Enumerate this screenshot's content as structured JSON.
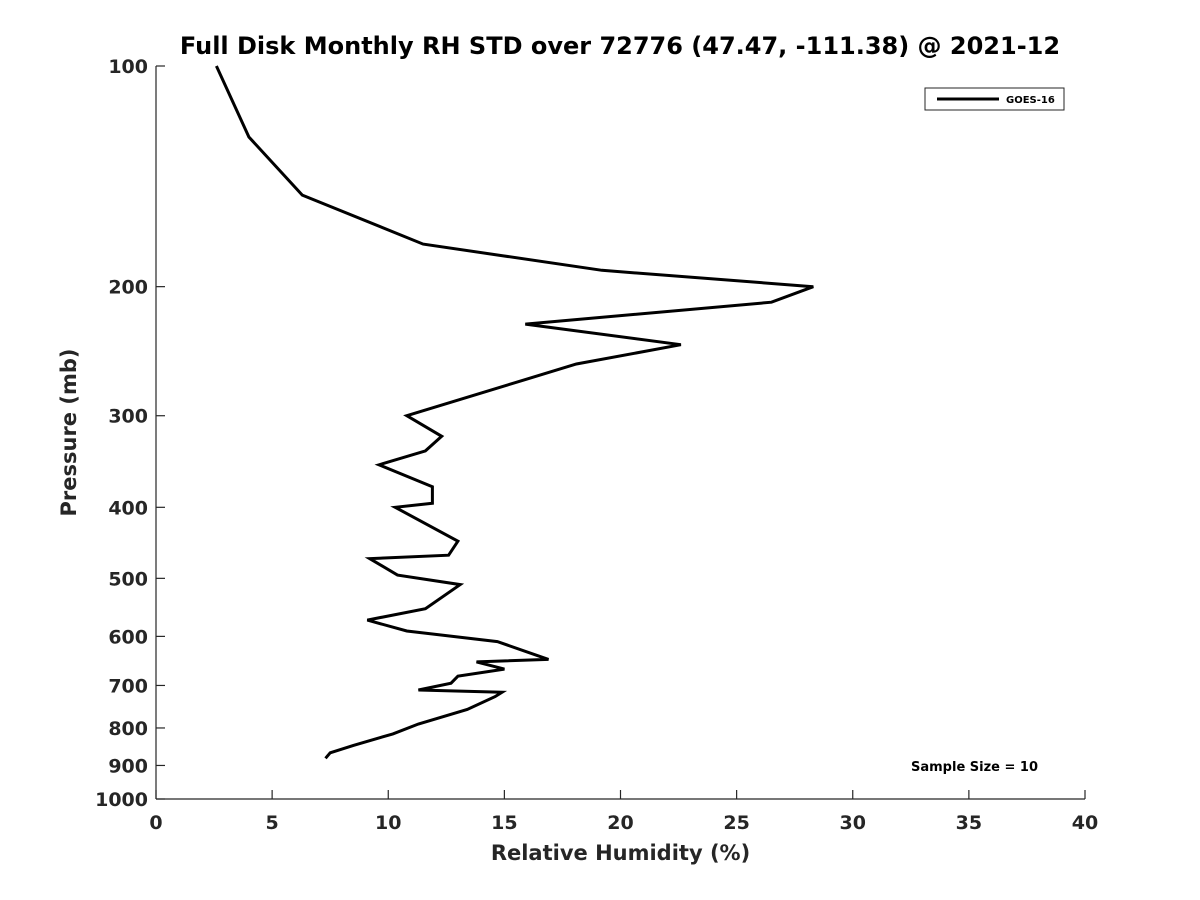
{
  "chart_data": {
    "type": "line",
    "title": "Full Disk Monthly RH STD over 72776 (47.47, -111.38) @ 2021-12",
    "xlabel": "Relative Humidity (%)",
    "ylabel": "Pressure (mb)",
    "xlim": [
      0,
      40
    ],
    "ylim": [
      100,
      1000
    ],
    "y_scale": "log",
    "y_reversed": true,
    "x_ticks": [
      "0",
      "5",
      "10",
      "15",
      "20",
      "25",
      "30",
      "35",
      "40"
    ],
    "y_ticks": [
      "100",
      "200",
      "300",
      "400",
      "500",
      "600",
      "700",
      "800",
      "900",
      "1000"
    ],
    "grid": false,
    "legend_position": "top-right",
    "annotation": "Sample Size = 10",
    "series": [
      {
        "name": "GOES-16",
        "color": "#000000",
        "x": [
          2.6,
          4.0,
          6.3,
          11.5,
          19.2,
          28.3,
          26.5,
          15.9,
          22.6,
          18.1,
          10.8,
          12.3,
          11.6,
          9.6,
          11.9,
          11.9,
          10.3,
          13.0,
          12.6,
          9.2,
          10.4,
          13.1,
          11.6,
          9.1,
          10.8,
          14.7,
          16.9,
          13.8,
          15.0,
          13.0,
          12.7,
          11.3,
          14.9,
          14.6,
          13.4,
          11.3,
          10.2,
          8.5,
          7.5,
          7.3
        ],
        "y": [
          100,
          125,
          150,
          175,
          190,
          200,
          210,
          225,
          240,
          255,
          300,
          320,
          335,
          350,
          375,
          395,
          400,
          445,
          465,
          470,
          495,
          510,
          550,
          570,
          590,
          610,
          645,
          650,
          665,
          680,
          695,
          710,
          715,
          725,
          755,
          790,
          815,
          845,
          865,
          880
        ]
      }
    ]
  }
}
